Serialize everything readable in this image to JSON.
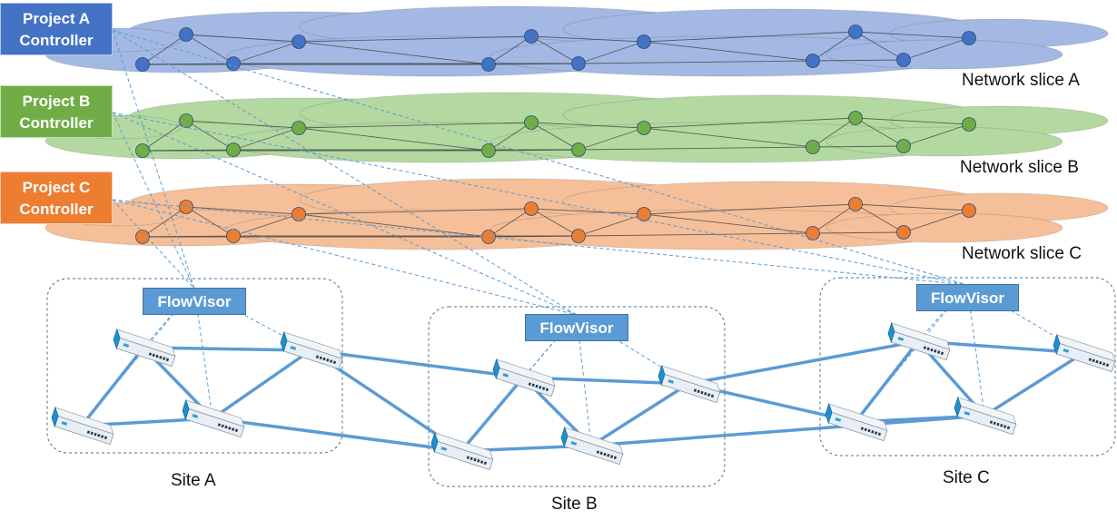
{
  "controllers": [
    {
      "line1": "Project  A",
      "line2": "Controller",
      "color": "#4472c4"
    },
    {
      "line1": "Project  B",
      "line2": "Controller",
      "color": "#70ad47"
    },
    {
      "line1": "Project  C",
      "line2": "Controller",
      "color": "#ed7d31"
    }
  ],
  "slices": [
    {
      "label": "Network slice A",
      "cloud_color": "#a3b9e3",
      "node_color": "#4472c4"
    },
    {
      "label": "Network slice B",
      "cloud_color": "#b3d9a1",
      "node_color": "#70ad47"
    },
    {
      "label": "Network slice C",
      "cloud_color": "#f5bf99",
      "node_color": "#ed7d31"
    }
  ],
  "sites": [
    {
      "label": "Site A",
      "flowvisor": "FlowVisor"
    },
    {
      "label": "Site B",
      "flowvisor": "FlowVisor"
    },
    {
      "label": "Site C",
      "flowvisor": "FlowVisor"
    }
  ],
  "colors": {
    "link": "#5b9bd5",
    "dashed": "#5b9bd5",
    "switch_body": "#e8eef5",
    "switch_side": "#1f8fd0"
  },
  "icons": [
    "cloud-icon",
    "switch-icon"
  ]
}
